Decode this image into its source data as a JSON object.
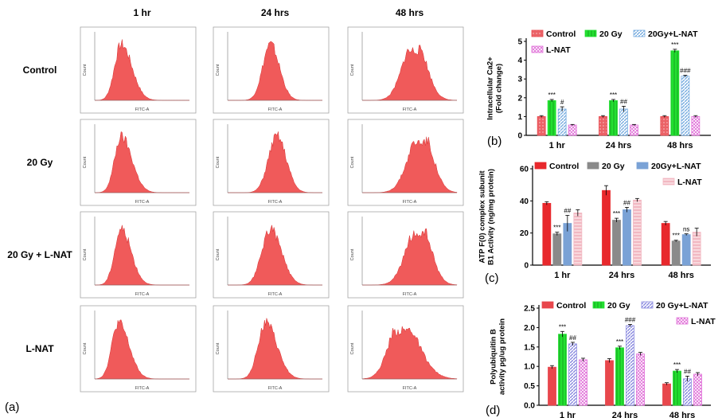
{
  "panel_a": {
    "panel_label": "(a)",
    "columns": [
      "1 hr",
      "24 hrs",
      "48 hrs"
    ],
    "rows": [
      "Control",
      "20 Gy",
      "20 Gy + L-NAT",
      "L-NAT"
    ],
    "x_axis_label": "FITC-A",
    "y_axis_label": "Count",
    "fill_color": "#f05a5a"
  },
  "chart_data": [
    {
      "panel_label": "(b)",
      "type": "bar",
      "categories": [
        "1 hr",
        "24 hrs",
        "48 hrs"
      ],
      "ylabel": "Intracellular Ca2+\n(Fold change)",
      "ylim": [
        0,
        5
      ],
      "yticks": [
        0,
        1,
        2,
        3,
        4,
        5
      ],
      "series": [
        {
          "name": "Control",
          "values": [
            1.0,
            1.0,
            1.0
          ],
          "errors": [
            0.05,
            0.05,
            0.05
          ],
          "color": "#e8474c",
          "pattern": "dots"
        },
        {
          "name": "20 Gy",
          "values": [
            1.85,
            1.85,
            4.5
          ],
          "errors": [
            0.06,
            0.06,
            0.08
          ],
          "color": "#22e030",
          "pattern": "vlines"
        },
        {
          "name": "20Gy+L-NAT",
          "values": [
            1.4,
            1.4,
            3.15
          ],
          "errors": [
            0.12,
            0.15,
            0.05
          ],
          "color": "#7aaee0",
          "pattern": "diag"
        },
        {
          "name": "L-NAT",
          "values": [
            0.55,
            0.55,
            1.0
          ],
          "errors": [
            0.03,
            0.03,
            0.05
          ],
          "color": "#e070d8",
          "pattern": "cross"
        }
      ],
      "annotations": [
        {
          "category": 0,
          "series": 1,
          "text": "***"
        },
        {
          "category": 0,
          "series": 2,
          "text": "#"
        },
        {
          "category": 1,
          "series": 1,
          "text": "***"
        },
        {
          "category": 1,
          "series": 2,
          "text": "##"
        },
        {
          "category": 2,
          "series": 1,
          "text": "***"
        },
        {
          "category": 2,
          "series": 2,
          "text": "###"
        }
      ],
      "legend": "top"
    },
    {
      "panel_label": "(c)",
      "type": "bar",
      "categories": [
        "1 hr",
        "24 hrs",
        "48 hrs"
      ],
      "ylabel": "ATP F(0) complex subunit\nB1 Activity (ng/mg protein)",
      "ylim": [
        0,
        60
      ],
      "yticks": [
        0,
        20,
        40,
        60
      ],
      "series": [
        {
          "name": "Control",
          "values": [
            38.5,
            46.5,
            26
          ],
          "errors": [
            1,
            3,
            1.2
          ],
          "color": "#e8282c",
          "pattern": "solid"
        },
        {
          "name": "20 Gy",
          "values": [
            19.5,
            28,
            15
          ],
          "errors": [
            1,
            1.2,
            0.5
          ],
          "color": "#8a8a8a",
          "pattern": "solid"
        },
        {
          "name": "20Gy+L-NAT",
          "values": [
            26,
            34.5,
            19
          ],
          "errors": [
            5,
            1.5,
            0.5
          ],
          "color": "#7aa2d6",
          "pattern": "solid"
        },
        {
          "name": "L-NAT",
          "values": [
            32.5,
            40.5,
            20.5
          ],
          "errors": [
            2,
            1,
            2.5
          ],
          "color": "#f2b8c2",
          "pattern": "hlines"
        }
      ],
      "annotations": [
        {
          "category": 0,
          "series": 1,
          "text": "***"
        },
        {
          "category": 0,
          "series": 2,
          "text": "##"
        },
        {
          "category": 1,
          "series": 1,
          "text": "***"
        },
        {
          "category": 1,
          "series": 2,
          "text": "##"
        },
        {
          "category": 2,
          "series": 1,
          "text": "***"
        },
        {
          "category": 2,
          "series": 2,
          "text": "ns"
        }
      ],
      "legend": "top"
    },
    {
      "panel_label": "(d)",
      "type": "bar",
      "categories": [
        "1 hr",
        "24 hrs",
        "48 hrs"
      ],
      "ylabel": "Polyubiquitin B\nactivity pg/ug protein",
      "ylim": [
        0,
        2.5
      ],
      "yticks": [
        0.0,
        0.5,
        1.0,
        1.5,
        2.0,
        2.5
      ],
      "series": [
        {
          "name": "Control",
          "values": [
            0.98,
            1.15,
            0.55
          ],
          "errors": [
            0.04,
            0.05,
            0.03
          ],
          "color": "#e8474c",
          "pattern": "solid"
        },
        {
          "name": "20 Gy",
          "values": [
            1.83,
            1.48,
            0.88
          ],
          "errors": [
            0.07,
            0.04,
            0.04
          ],
          "color": "#22e030",
          "pattern": "vlines"
        },
        {
          "name": "20 Gy+L-NAT",
          "values": [
            1.58,
            2.05,
            0.68
          ],
          "errors": [
            0.04,
            0.03,
            0.07
          ],
          "color": "#8a8ae0",
          "pattern": "diag"
        },
        {
          "name": "L-NAT",
          "values": [
            1.17,
            1.32,
            0.8
          ],
          "errors": [
            0.04,
            0.04,
            0.04
          ],
          "color": "#e070d8",
          "pattern": "cross"
        }
      ],
      "annotations": [
        {
          "category": 0,
          "series": 1,
          "text": "***"
        },
        {
          "category": 0,
          "series": 2,
          "text": "##"
        },
        {
          "category": 1,
          "series": 1,
          "text": "***"
        },
        {
          "category": 1,
          "series": 2,
          "text": "###"
        },
        {
          "category": 2,
          "series": 1,
          "text": "***"
        },
        {
          "category": 2,
          "series": 2,
          "text": "##"
        }
      ],
      "legend": "top"
    }
  ]
}
